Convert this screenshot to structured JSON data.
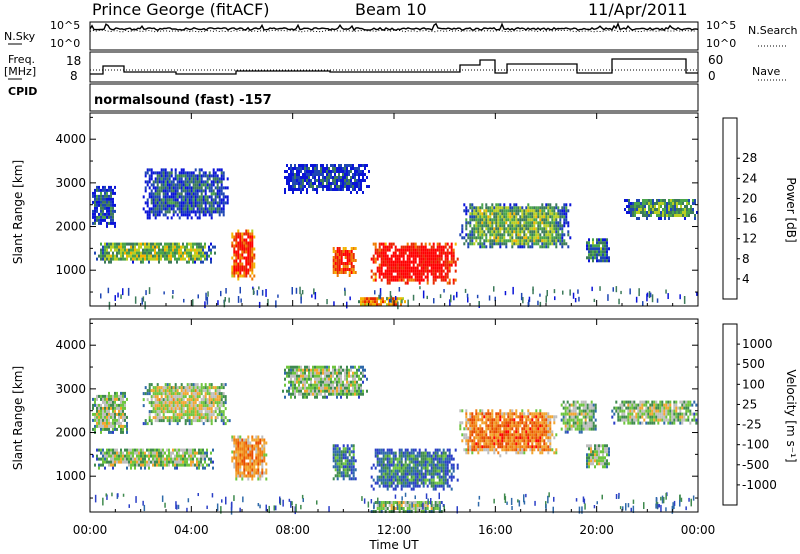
{
  "header": {
    "station": "Prince George (fitACF)",
    "beam": "Beam 10",
    "date": "11/Apr/2011"
  },
  "status_panels": {
    "left_top": "N.Sky",
    "left_freq": "Freq.",
    "left_freq_unit": "[MHz]",
    "left_cpid": "CPID",
    "right_top": "N.Search",
    "right_nave": "Nave",
    "nsky_ticks": [
      "10^5",
      "10^0"
    ],
    "nsearch_ticks": [
      "10^5",
      "10^0"
    ],
    "freq_ticks": [
      "18",
      "8"
    ],
    "nave_ticks": [
      "60",
      "0"
    ],
    "cpid_text": "normalsound (fast) -157"
  },
  "colors": {
    "power": [
      "#0a14d8",
      "#1e46b4",
      "#3c7a5a",
      "#49a44a",
      "#b8cf22",
      "#f5b400",
      "#f07a00",
      "#e82800",
      "#ff0000"
    ],
    "velocity": [
      "#2b3fc7",
      "#2f6aaa",
      "#3f8a4e",
      "#6ec53e",
      "#bebebe",
      "#f2a630",
      "#ef7c10",
      "#e84a00",
      "#ff0000"
    ]
  },
  "chart_data": [
    {
      "type": "heatmap",
      "name": "power",
      "xlabel": "Time UT",
      "ylabel": "Slant Range [km]",
      "x_ticks": [
        "00:00",
        "04:00",
        "08:00",
        "12:00",
        "16:00",
        "20:00",
        "00:00"
      ],
      "y_ticks": [
        1000,
        2000,
        3000,
        4000
      ],
      "ylim": [
        180,
        4600
      ],
      "colorbar_label": "Power [dB]",
      "colorbar_ticks": [
        4,
        8,
        12,
        16,
        20,
        24,
        28
      ],
      "bands": [
        {
          "t0": 0.0,
          "t1": 5.0,
          "r0": 1200,
          "r1": 1700,
          "level": 0.45
        },
        {
          "t0": 0.0,
          "t1": 1.0,
          "r0": 2000,
          "r1": 3000,
          "level": 0.2
        },
        {
          "t0": 2.0,
          "t1": 5.5,
          "r0": 2200,
          "r1": 3400,
          "level": 0.2
        },
        {
          "t0": 5.5,
          "t1": 6.5,
          "r0": 800,
          "r1": 2000,
          "level": 0.85
        },
        {
          "t0": 9.5,
          "t1": 10.5,
          "r0": 900,
          "r1": 1600,
          "level": 0.85
        },
        {
          "t0": 11.0,
          "t1": 14.5,
          "r0": 700,
          "r1": 1700,
          "level": 1.0
        },
        {
          "t0": 7.5,
          "t1": 11.0,
          "r0": 2800,
          "r1": 3500,
          "level": 0.15
        },
        {
          "t0": 14.5,
          "t1": 19.0,
          "r0": 1500,
          "r1": 2600,
          "level": 0.4
        },
        {
          "t0": 19.5,
          "t1": 20.5,
          "r0": 1200,
          "r1": 1800,
          "level": 0.3
        },
        {
          "t0": 21.0,
          "t1": 24.0,
          "r0": 2200,
          "r1": 2700,
          "level": 0.35
        },
        {
          "t0": 10.5,
          "t1": 12.5,
          "r0": 200,
          "r1": 450,
          "level": 0.7
        }
      ]
    },
    {
      "type": "heatmap",
      "name": "velocity",
      "xlabel": "Time UT",
      "ylabel": "Slant Range [km]",
      "x_ticks": [
        "00:00",
        "04:00",
        "08:00",
        "12:00",
        "16:00",
        "20:00",
        "00:00"
      ],
      "y_ticks": [
        1000,
        2000,
        3000,
        4000
      ],
      "ylim": [
        180,
        4600
      ],
      "colorbar_label": "Velocity [m s⁻¹]",
      "colorbar_ticks": [
        1000,
        500,
        100,
        25,
        -25,
        -100,
        -500,
        -1000
      ],
      "bands": [
        {
          "t0": 0.0,
          "t1": 5.0,
          "r0": 1200,
          "r1": 1700,
          "level": 0.45
        },
        {
          "t0": 0.0,
          "t1": 1.5,
          "r0": 2000,
          "r1": 3000,
          "level": 0.45
        },
        {
          "t0": 2.0,
          "t1": 5.5,
          "r0": 2200,
          "r1": 3200,
          "level": 0.5
        },
        {
          "t0": 5.5,
          "t1": 7.0,
          "r0": 900,
          "r1": 2000,
          "level": 0.7
        },
        {
          "t0": 7.5,
          "t1": 11.0,
          "r0": 2800,
          "r1": 3600,
          "level": 0.45
        },
        {
          "t0": 9.5,
          "t1": 10.5,
          "r0": 900,
          "r1": 1800,
          "level": 0.25
        },
        {
          "t0": 11.0,
          "t1": 14.5,
          "r0": 700,
          "r1": 1700,
          "level": 0.22
        },
        {
          "t0": 14.5,
          "t1": 18.5,
          "r0": 1500,
          "r1": 2600,
          "level": 0.75
        },
        {
          "t0": 18.5,
          "t1": 20.0,
          "r0": 2000,
          "r1": 2800,
          "level": 0.45
        },
        {
          "t0": 19.5,
          "t1": 20.5,
          "r0": 1200,
          "r1": 1800,
          "level": 0.45
        },
        {
          "t0": 20.5,
          "t1": 24.0,
          "r0": 2200,
          "r1": 2800,
          "level": 0.45
        },
        {
          "t0": 11.0,
          "t1": 14.0,
          "r0": 200,
          "r1": 500,
          "level": 0.45
        }
      ]
    }
  ]
}
